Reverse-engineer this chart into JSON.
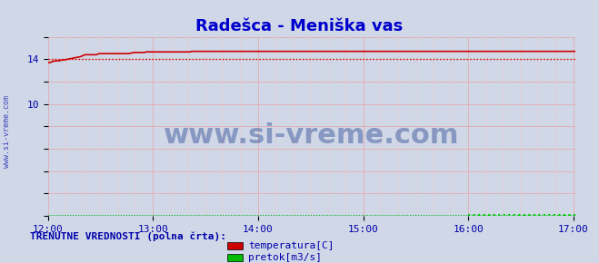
{
  "title": "Radešca - Meniška vas",
  "title_color": "#0000cc",
  "title_fontsize": 13,
  "bg_color": "#d0d8e8",
  "plot_bg_color": "#d0d8e8",
  "fig_bg_color": "#d0d8e8",
  "xmin": 0,
  "xmax": 361,
  "ymin": 0,
  "ymax": 16,
  "yticks": [
    0,
    2,
    4,
    6,
    8,
    10,
    12,
    14,
    16
  ],
  "xtick_labels": [
    "12:00",
    "13:00",
    "14:00",
    "15:00",
    "16:00",
    "17:00"
  ],
  "xtick_positions": [
    0,
    72,
    144,
    216,
    288,
    360
  ],
  "grid_color": "#e8a0a0",
  "grid_color_minor": "#f0c0c0",
  "temp_color": "#cc0000",
  "temp_avg_color": "#cc0000",
  "pretok_color": "#00cc00",
  "visina_color": "#0000cc",
  "watermark": "www.si-vreme.com",
  "watermark_color": "#1a3a8a",
  "legend_text": "TRENUTNE VREDNOSTI (polna črta):",
  "legend_color": "#0000aa",
  "legend_items": [
    "temperatura[C]",
    "pretok[m3/s]"
  ],
  "legend_item_colors": [
    "#cc0000",
    "#00bb00"
  ],
  "temp_data": [
    13.7,
    13.7,
    13.7,
    13.8,
    13.8,
    13.85,
    13.85,
    13.85,
    13.85,
    13.9,
    13.9,
    13.95,
    13.95,
    13.95,
    14.0,
    14.0,
    14.05,
    14.05,
    14.1,
    14.1,
    14.15,
    14.15,
    14.2,
    14.2,
    14.25,
    14.3,
    14.35,
    14.4,
    14.4,
    14.4,
    14.4,
    14.4,
    14.4,
    14.4,
    14.4,
    14.4,
    14.45,
    14.5,
    14.5,
    14.5,
    14.5,
    14.5,
    14.5,
    14.5,
    14.5,
    14.5,
    14.5,
    14.5,
    14.5,
    14.5,
    14.5,
    14.5,
    14.5,
    14.5,
    14.5,
    14.5,
    14.5,
    14.5,
    14.5,
    14.5,
    14.55,
    14.55,
    14.6,
    14.6,
    14.6,
    14.6,
    14.6,
    14.6,
    14.6,
    14.6,
    14.6,
    14.65,
    14.65,
    14.65,
    14.65,
    14.65,
    14.65,
    14.65,
    14.65,
    14.65,
    14.65,
    14.65,
    14.65,
    14.65,
    14.65,
    14.65,
    14.65,
    14.65,
    14.65,
    14.65,
    14.65,
    14.65,
    14.65,
    14.65,
    14.65,
    14.65,
    14.65,
    14.65,
    14.65,
    14.65,
    14.65,
    14.65,
    14.65,
    14.65,
    14.7,
    14.7,
    14.7,
    14.7,
    14.7,
    14.7,
    14.7,
    14.7,
    14.7,
    14.7,
    14.7,
    14.7,
    14.7,
    14.7,
    14.7,
    14.7,
    14.7,
    14.7,
    14.7,
    14.7,
    14.7,
    14.7,
    14.7,
    14.7,
    14.7,
    14.7,
    14.7,
    14.7,
    14.7,
    14.7,
    14.7,
    14.7,
    14.7,
    14.7,
    14.7,
    14.7,
    14.7,
    14.7,
    14.7,
    14.7,
    14.7,
    14.7,
    14.7,
    14.7,
    14.7,
    14.7,
    14.7,
    14.7,
    14.7,
    14.7,
    14.7,
    14.7,
    14.7,
    14.7,
    14.7,
    14.7,
    14.7,
    14.7,
    14.7,
    14.7,
    14.7,
    14.7,
    14.7,
    14.7,
    14.7,
    14.7,
    14.7,
    14.7,
    14.7,
    14.7,
    14.7,
    14.7,
    14.7,
    14.7,
    14.7,
    14.7,
    14.7,
    14.7,
    14.7,
    14.7,
    14.7,
    14.7,
    14.7,
    14.7,
    14.7,
    14.7,
    14.7,
    14.7,
    14.7,
    14.7,
    14.7,
    14.7,
    14.7,
    14.7,
    14.7,
    14.7,
    14.7,
    14.7,
    14.7,
    14.7,
    14.7,
    14.7,
    14.7,
    14.7,
    14.7,
    14.7,
    14.7,
    14.7,
    14.7,
    14.7,
    14.7,
    14.7,
    14.7,
    14.7,
    14.7,
    14.7,
    14.7,
    14.7,
    14.7,
    14.7,
    14.7,
    14.7,
    14.7,
    14.7,
    14.7,
    14.7,
    14.7,
    14.7,
    14.7,
    14.7,
    14.7,
    14.7,
    14.7,
    14.7,
    14.7,
    14.7,
    14.7,
    14.7,
    14.7,
    14.7,
    14.7,
    14.7,
    14.7,
    14.7,
    14.7,
    14.7,
    14.7,
    14.7,
    14.7,
    14.7,
    14.7,
    14.7,
    14.7,
    14.7,
    14.7,
    14.7,
    14.7,
    14.7,
    14.7,
    14.7,
    14.7,
    14.7,
    14.7,
    14.7,
    14.7,
    14.7,
    14.7,
    14.7,
    14.7,
    14.7,
    14.7,
    14.7,
    14.7,
    14.7,
    14.7,
    14.7,
    14.7,
    14.7,
    14.7,
    14.7,
    14.7,
    14.7,
    14.7,
    14.7,
    14.7,
    14.7,
    14.7,
    14.7,
    14.7,
    14.7,
    14.7,
    14.7,
    14.7,
    14.7,
    14.7,
    14.7,
    14.7,
    14.7,
    14.7,
    14.7,
    14.7,
    14.7,
    14.7,
    14.7,
    14.7,
    14.7,
    14.7,
    14.7,
    14.7,
    14.7,
    14.7,
    14.7,
    14.7,
    14.7,
    14.7,
    14.7,
    14.7,
    14.7,
    14.7,
    14.7,
    14.7,
    14.7,
    14.7,
    14.7,
    14.7,
    14.7,
    14.7,
    14.7,
    14.7,
    14.7,
    14.7,
    14.7,
    14.7,
    14.7,
    14.7,
    14.7,
    14.7,
    14.7,
    14.7,
    14.7,
    14.7,
    14.7,
    14.7,
    14.7,
    14.7,
    14.7,
    14.7,
    14.7,
    14.7,
    14.7,
    14.7,
    14.7,
    14.7,
    14.7,
    14.7,
    14.7,
    14.7,
    14.7,
    14.7,
    14.7,
    14.7,
    14.7,
    14.7,
    14.7,
    14.7,
    14.7,
    14.7,
    14.7,
    14.7,
    14.7,
    14.7,
    14.7,
    14.7,
    14.7,
    14.7,
    14.7,
    14.7,
    14.7,
    14.7
  ],
  "temp_avg": 14.0,
  "pretok_data_x": [
    288,
    361
  ],
  "pretok_data_y": [
    0.02,
    0.02
  ],
  "visina_data_x": [
    0,
    361
  ],
  "visina_data_y": [
    0.0,
    0.0
  ],
  "arrow_color": "#cc0000",
  "ylabel_color": "#0000aa",
  "ylabel_text": "www.si-vreme.com"
}
